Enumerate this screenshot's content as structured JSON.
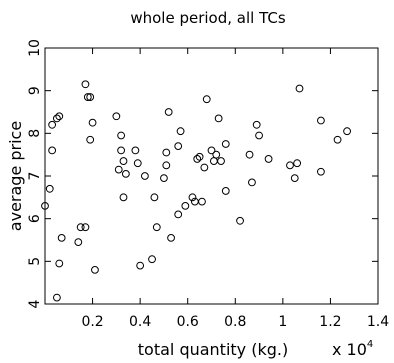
{
  "chart_data": {
    "type": "scatter",
    "title": "whole period, all TCs",
    "xlabel": "total quantity (kg.)",
    "ylabel": "average price",
    "x_multiplier_label": "x 10",
    "x_multiplier_exponent": "4",
    "xlim": [
      0,
      1.4
    ],
    "ylim": [
      4,
      10
    ],
    "xticks": [
      0.2,
      0.4,
      0.6,
      0.8,
      1.0,
      1.2,
      1.4
    ],
    "xtick_labels": [
      "0.2",
      "0.4",
      "0.6",
      "0.8",
      "1",
      "1.2",
      "1.4"
    ],
    "yticks": [
      4,
      5,
      6,
      7,
      8,
      9,
      10
    ],
    "ytick_labels": [
      "4",
      "5",
      "6",
      "7",
      "8",
      "9",
      "10"
    ],
    "grid": false,
    "marker": "circle",
    "series": [
      {
        "points": [
          [
            0.0,
            6.3
          ],
          [
            0.02,
            6.7
          ],
          [
            0.03,
            7.6
          ],
          [
            0.03,
            8.2
          ],
          [
            0.05,
            8.35
          ],
          [
            0.06,
            8.4
          ],
          [
            0.05,
            4.15
          ],
          [
            0.06,
            4.95
          ],
          [
            0.07,
            5.55
          ],
          [
            0.14,
            5.45
          ],
          [
            0.15,
            5.8
          ],
          [
            0.17,
            5.8
          ],
          [
            0.17,
            9.15
          ],
          [
            0.18,
            8.85
          ],
          [
            0.19,
            8.85
          ],
          [
            0.19,
            7.85
          ],
          [
            0.2,
            8.25
          ],
          [
            0.21,
            4.8
          ],
          [
            0.3,
            8.4
          ],
          [
            0.31,
            7.15
          ],
          [
            0.32,
            7.6
          ],
          [
            0.32,
            7.95
          ],
          [
            0.33,
            7.35
          ],
          [
            0.33,
            6.5
          ],
          [
            0.34,
            7.05
          ],
          [
            0.38,
            7.6
          ],
          [
            0.39,
            7.3
          ],
          [
            0.4,
            4.9
          ],
          [
            0.42,
            7.0
          ],
          [
            0.45,
            5.05
          ],
          [
            0.46,
            6.5
          ],
          [
            0.47,
            5.8
          ],
          [
            0.5,
            6.95
          ],
          [
            0.51,
            7.25
          ],
          [
            0.51,
            7.55
          ],
          [
            0.52,
            8.5
          ],
          [
            0.53,
            5.55
          ],
          [
            0.56,
            7.7
          ],
          [
            0.56,
            6.1
          ],
          [
            0.57,
            8.05
          ],
          [
            0.59,
            6.3
          ],
          [
            0.62,
            6.5
          ],
          [
            0.63,
            6.4
          ],
          [
            0.64,
            7.4
          ],
          [
            0.65,
            7.45
          ],
          [
            0.66,
            6.4
          ],
          [
            0.67,
            7.2
          ],
          [
            0.68,
            8.8
          ],
          [
            0.7,
            7.6
          ],
          [
            0.71,
            7.35
          ],
          [
            0.72,
            7.5
          ],
          [
            0.73,
            8.35
          ],
          [
            0.74,
            7.35
          ],
          [
            0.76,
            7.75
          ],
          [
            0.76,
            6.65
          ],
          [
            0.82,
            5.95
          ],
          [
            0.86,
            7.5
          ],
          [
            0.87,
            6.85
          ],
          [
            0.89,
            8.2
          ],
          [
            0.9,
            7.95
          ],
          [
            0.94,
            7.4
          ],
          [
            1.03,
            7.25
          ],
          [
            1.05,
            6.95
          ],
          [
            1.06,
            7.3
          ],
          [
            1.07,
            9.05
          ],
          [
            1.16,
            7.1
          ],
          [
            1.16,
            8.3
          ],
          [
            1.23,
            7.85
          ],
          [
            1.27,
            8.05
          ]
        ]
      }
    ]
  }
}
